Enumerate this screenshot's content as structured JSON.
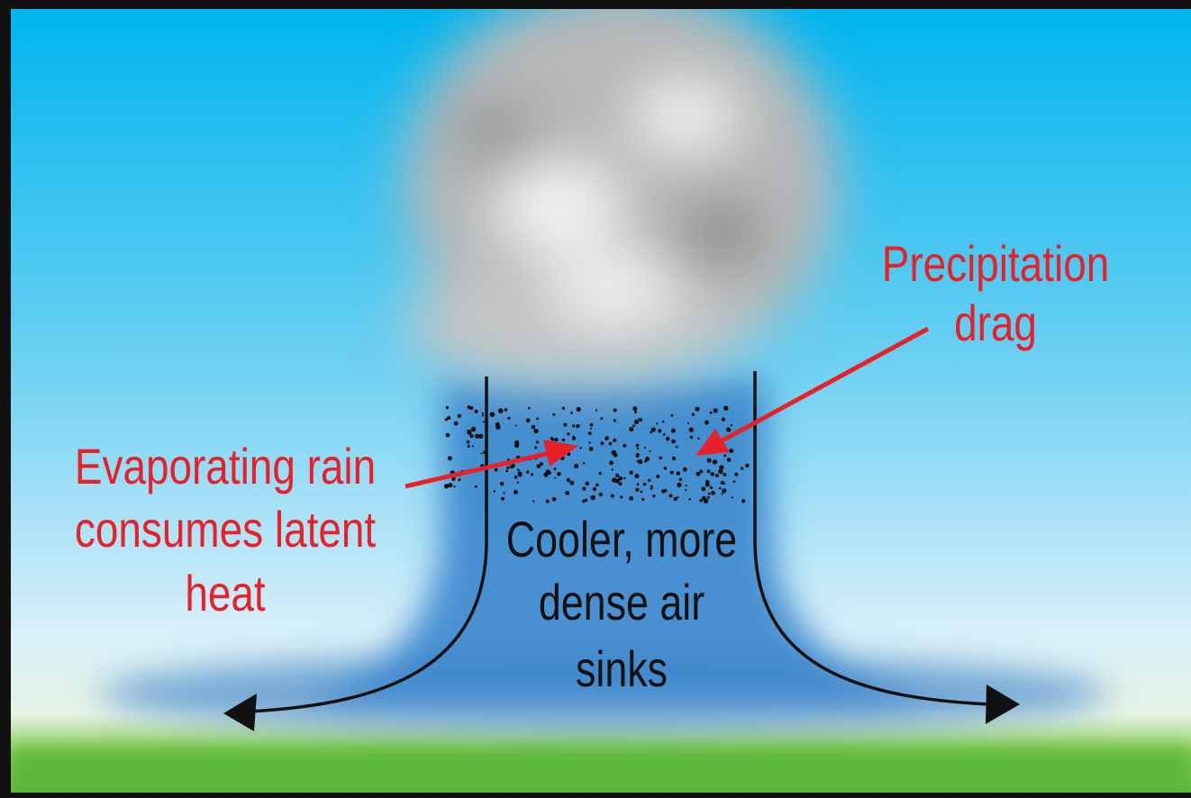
{
  "labels": {
    "precipitation": [
      "Precipitation",
      "drag"
    ],
    "evaporating": [
      "Evaporating rain",
      "consumes latent",
      "heat"
    ],
    "sinking": [
      "Cooler, more",
      "dense air",
      "sinks"
    ]
  }
}
